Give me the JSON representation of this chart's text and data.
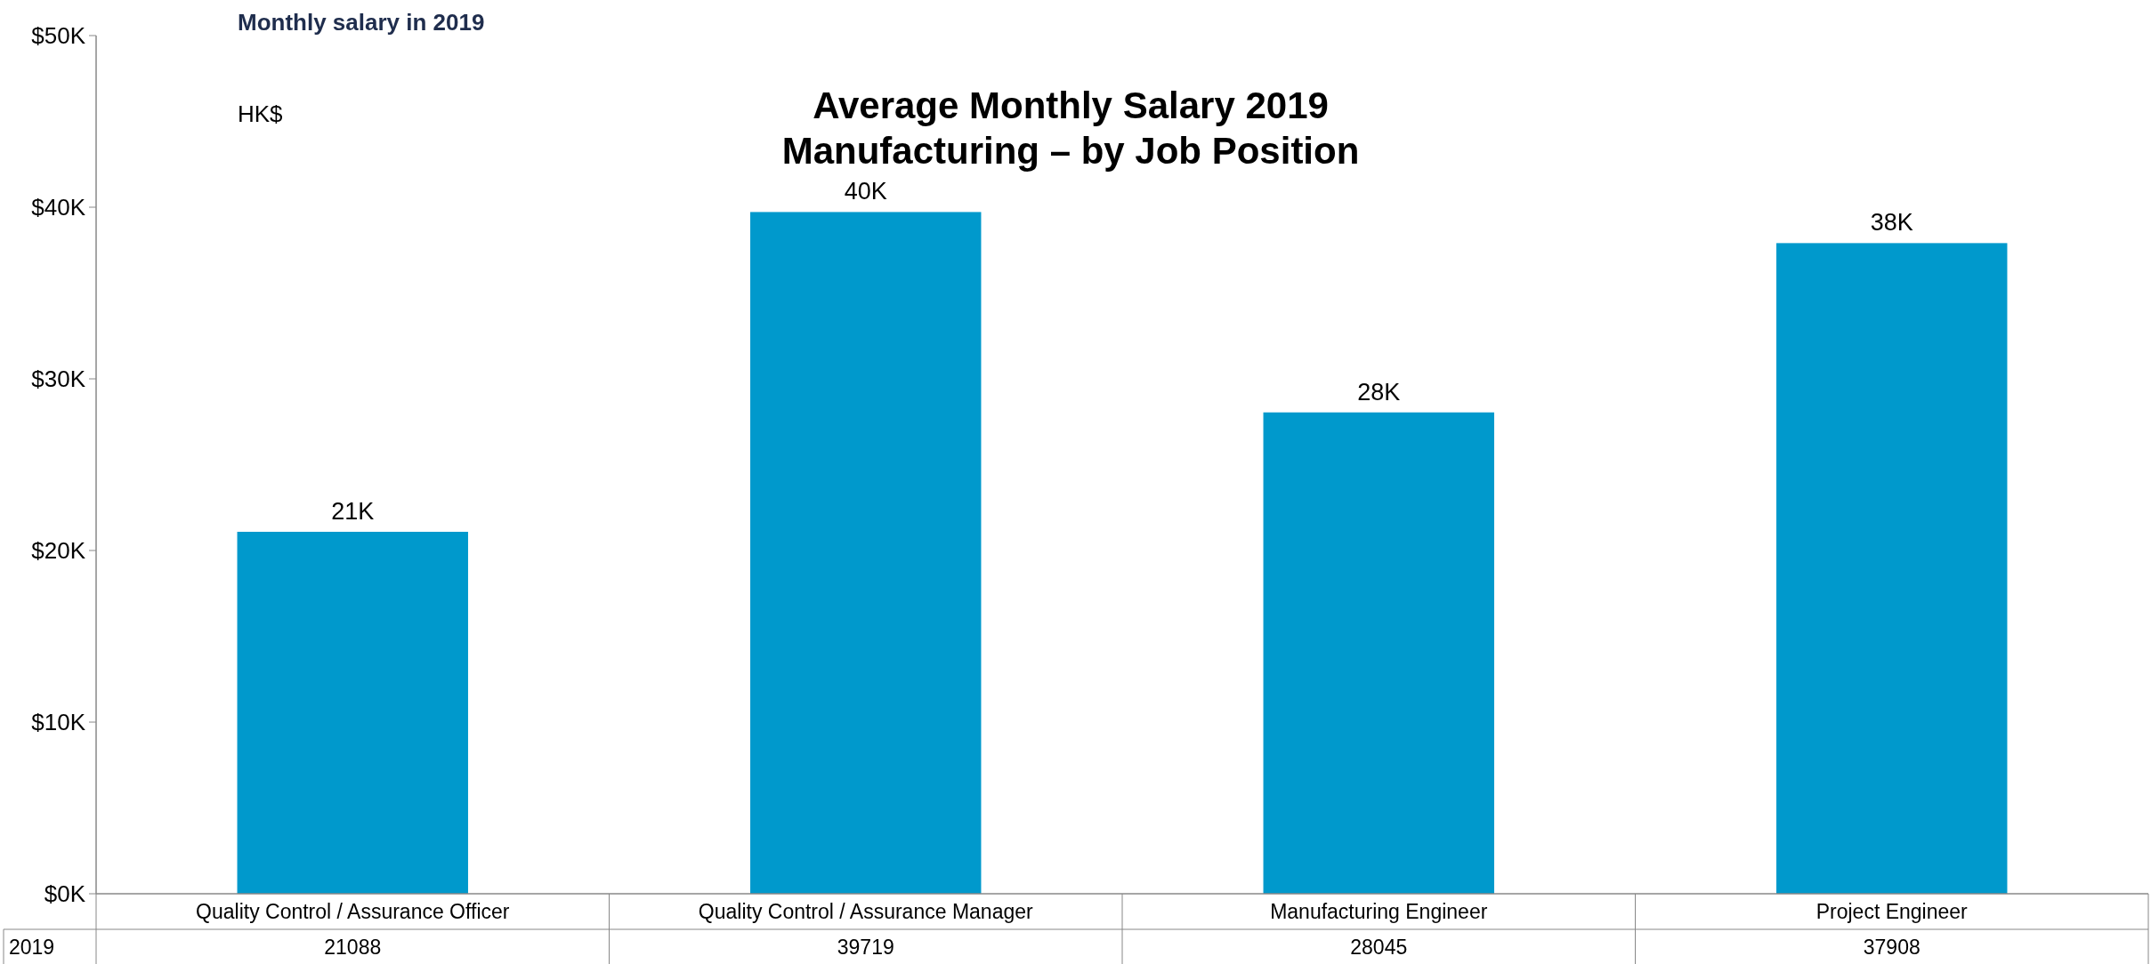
{
  "chart_data": {
    "type": "bar",
    "title": "Average Monthly Salary 2019\nManufacturing – by Job Position",
    "subtitle": "Monthly salary in 2019",
    "ylabel": "HK$",
    "categories": [
      "Quality Control / Assurance Officer",
      "Quality Control / Assurance Manager",
      "Manufacturing Engineer",
      "Project Engineer"
    ],
    "series": [
      {
        "name": "2019",
        "color": "#0099cc",
        "values": [
          21088,
          39719,
          28045,
          37908
        ],
        "value_labels": [
          "21088",
          "39719",
          "28045",
          "37908"
        ]
      }
    ],
    "annotations": [
      {
        "text": "21K",
        "x": "Quality Control / Assurance Officer",
        "y": 21088
      },
      {
        "text": "40K",
        "x": "Quality Control / Assurance Manager",
        "y": 39719
      },
      {
        "text": "28K",
        "x": "Manufacturing Engineer",
        "y": 28045
      },
      {
        "text": "38K",
        "x": "Project Engineer",
        "y": 37908
      }
    ],
    "ylim": [
      0,
      50000
    ],
    "yticks": [
      {
        "value": 0,
        "label": "$0K"
      },
      {
        "value": 10000,
        "label": "$10K"
      },
      {
        "value": 20000,
        "label": "$20K"
      },
      {
        "value": 30000,
        "label": "$30K"
      },
      {
        "value": 40000,
        "label": "$40K"
      },
      {
        "value": 50000,
        "label": "$50K"
      }
    ],
    "grid": false
  }
}
